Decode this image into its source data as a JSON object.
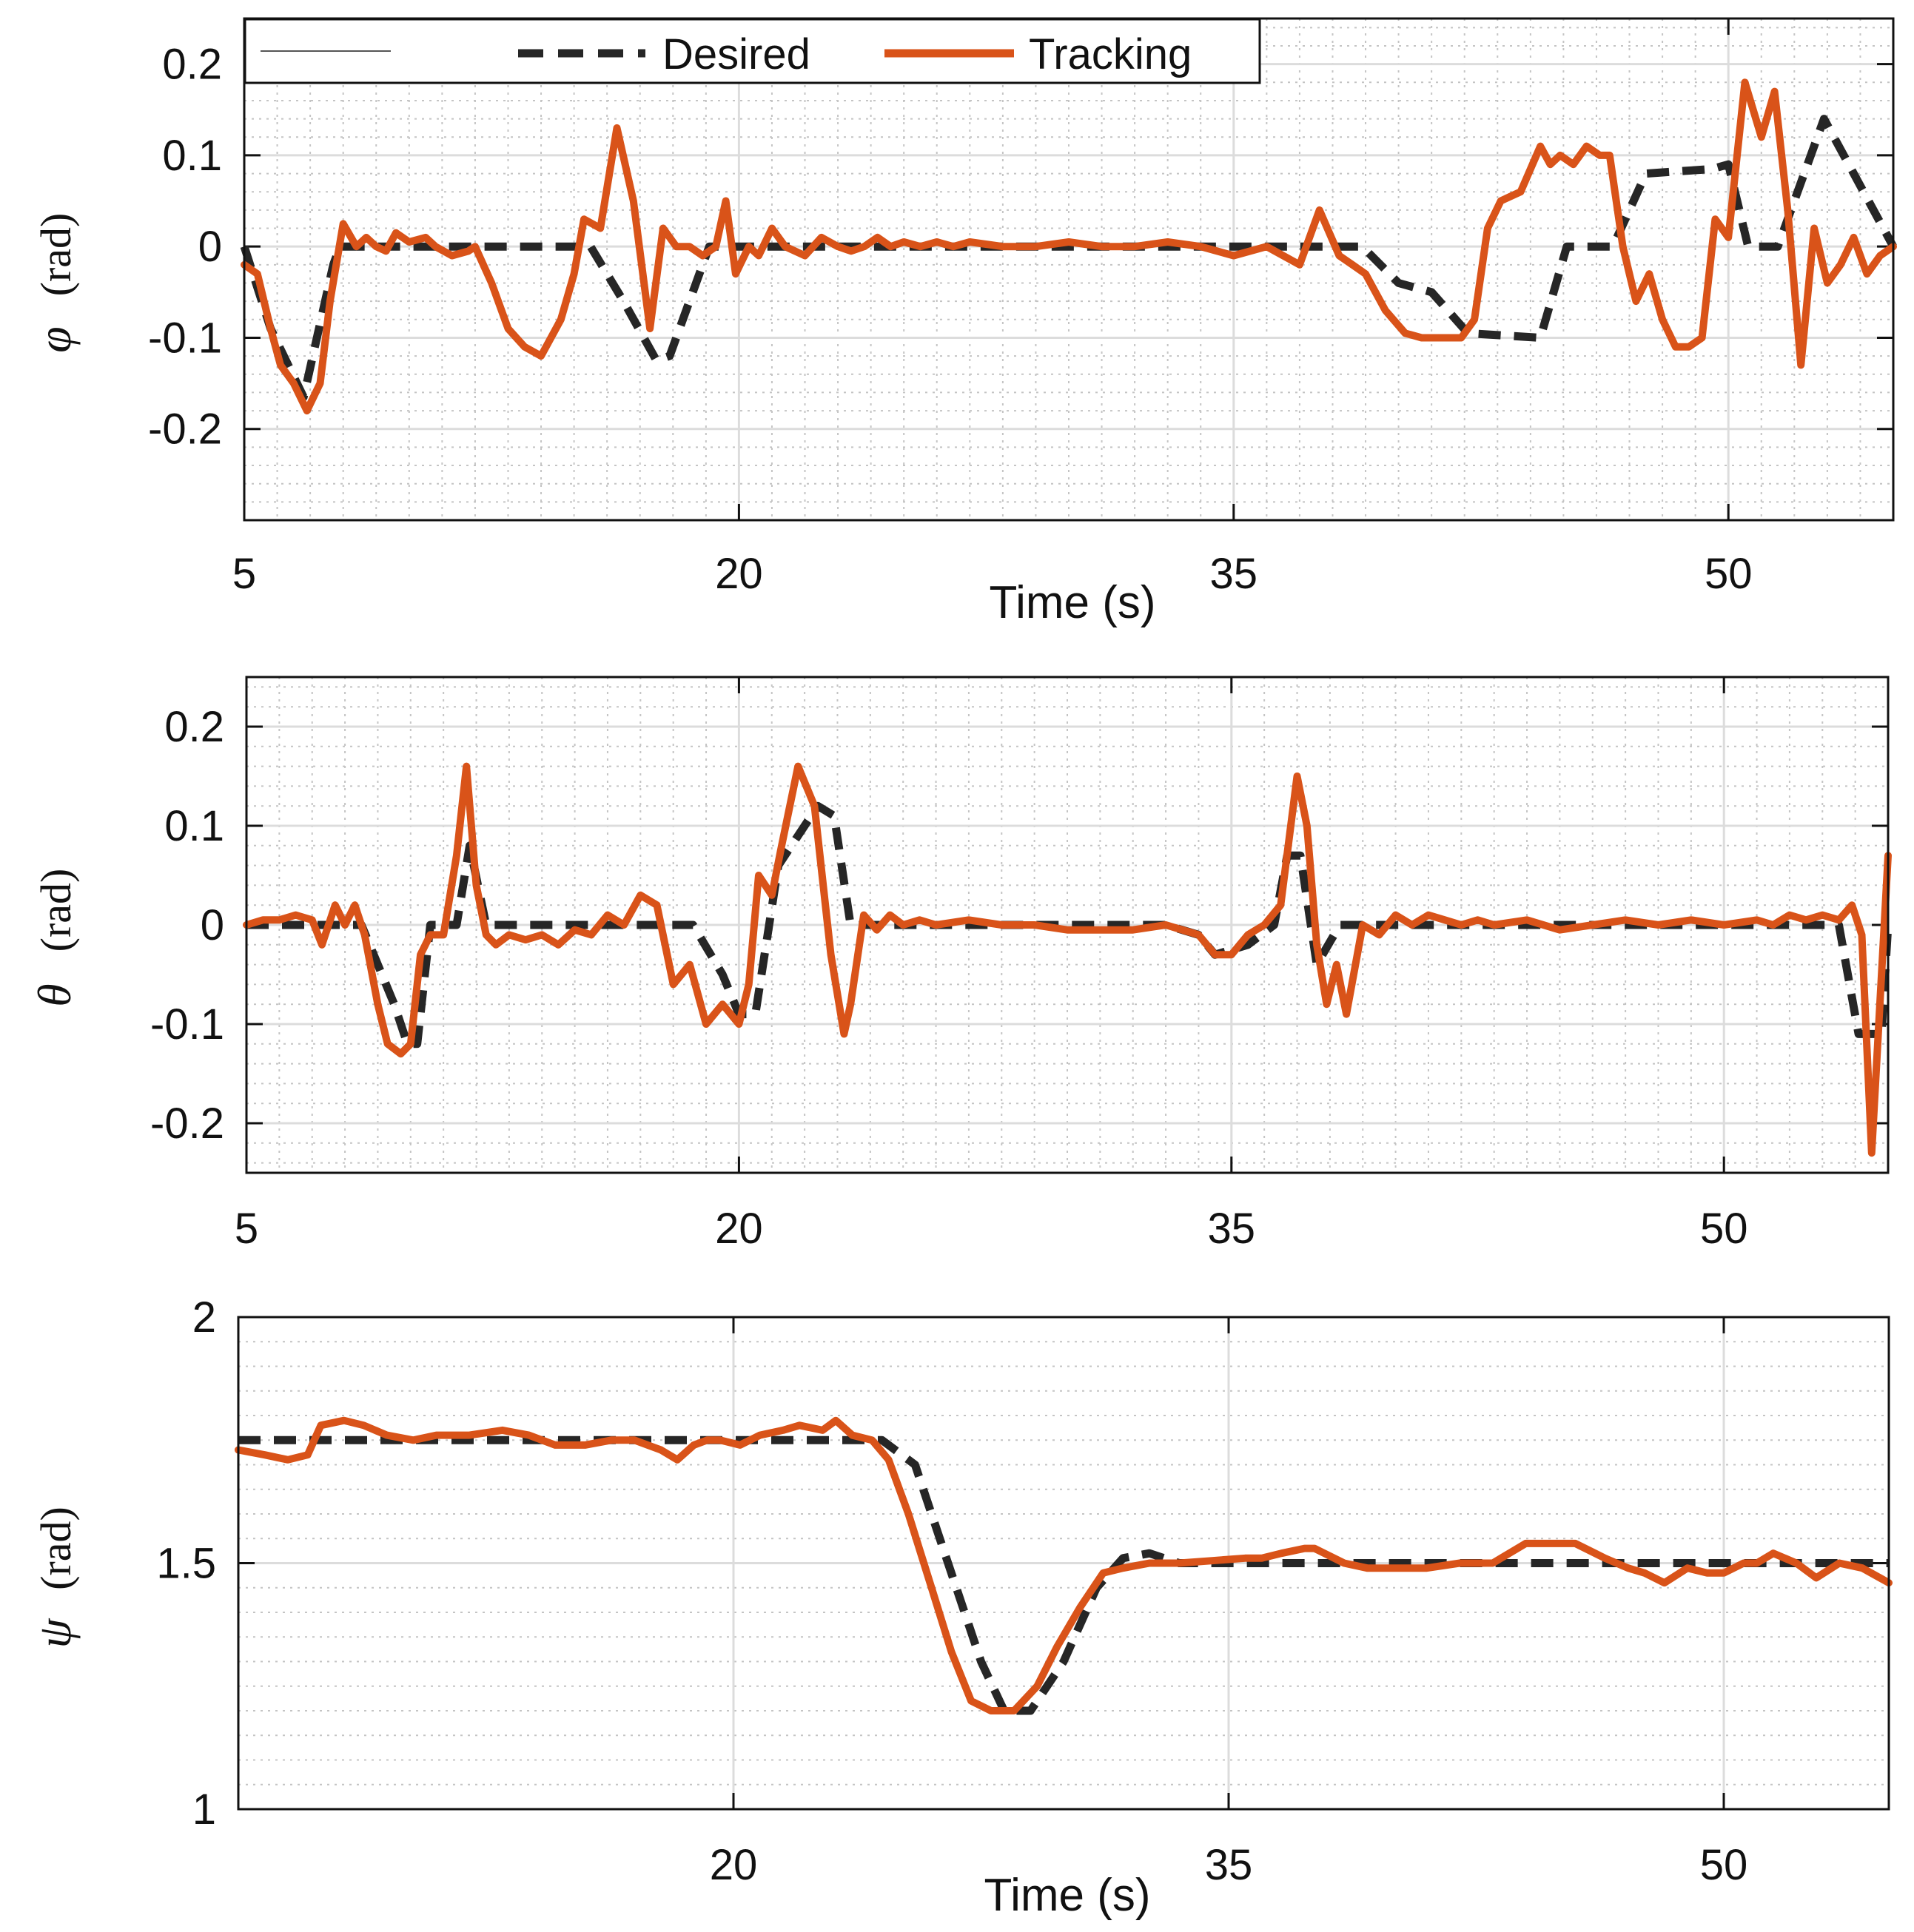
{
  "colors": {
    "desired": "#262626",
    "tracking": "#d95319",
    "grid_major": "#dcdcdc",
    "grid_minor": "#c4c4c4",
    "axes": "#111111"
  },
  "legend": {
    "blank_entry": "",
    "desired_label": "Desired",
    "tracking_label": "Tracking"
  },
  "chart_data": [
    {
      "type": "line",
      "title": "",
      "symbol": "φ",
      "ylabel_unit": "(rad)",
      "xlabel": "Time (s)",
      "xlim": [
        5,
        55
      ],
      "ylim": [
        -0.3,
        0.25
      ],
      "xticks": [
        5,
        20,
        35,
        50
      ],
      "xtick_labels": [
        "5",
        "20",
        "35",
        "50"
      ],
      "yticks": [
        0.2,
        0.1,
        0,
        -0.1,
        -0.2
      ],
      "ytick_labels": [
        "0.2",
        "0.1",
        "0",
        "-0.1",
        "-0.2"
      ],
      "grid": true,
      "legend": true,
      "series": [
        {
          "name": "Desired",
          "style": "dashed",
          "x": [
            5,
            5.8,
            6.8,
            7.7,
            7.9,
            8.5,
            15.5,
            16.5,
            17.5,
            17.9,
            18.6,
            19.1,
            19.5,
            33,
            38.9,
            40,
            41,
            42.1,
            44.3,
            45.1,
            46.5,
            47.5,
            49.5,
            50,
            50.6,
            51.5,
            52,
            52.9,
            55
          ],
          "y": [
            0,
            -0.09,
            -0.165,
            -0.02,
            0,
            0,
            0,
            -0.06,
            -0.125,
            -0.12,
            -0.05,
            0,
            0,
            0,
            0,
            -0.04,
            -0.05,
            -0.095,
            -0.1,
            0,
            0,
            0.08,
            0.085,
            0.09,
            0,
            0,
            0.05,
            0.14,
            0
          ]
        },
        {
          "name": "Tracking",
          "style": "solid",
          "x": [
            5,
            5.4,
            5.8,
            6.1,
            6.5,
            6.9,
            7.3,
            7.6,
            8.0,
            8.4,
            8.7,
            9.0,
            9.3,
            9.6,
            10,
            10.5,
            10.8,
            11.3,
            11.8,
            12.0,
            12.5,
            13,
            13.5,
            14,
            14.6,
            15.0,
            15.3,
            15.8,
            16.3,
            16.8,
            17.3,
            17.7,
            18.1,
            18.5,
            18.9,
            19.3,
            19.6,
            19.9,
            20.3,
            20.6,
            21.0,
            21.4,
            22.0,
            22.5,
            23.0,
            23.4,
            23.8,
            24.2,
            24.6,
            25.0,
            25.5,
            26,
            26.5,
            27,
            28,
            29,
            30,
            31,
            32,
            33,
            34,
            35,
            36,
            37,
            37.6,
            38.2,
            38.6,
            39.0,
            39.6,
            40.2,
            40.7,
            41.1,
            41.5,
            41.9,
            42.3,
            42.7,
            43.1,
            43.7,
            44.3,
            44.6,
            44.9,
            45.3,
            45.7,
            46.1,
            46.4,
            46.8,
            47.2,
            47.6,
            48.0,
            48.4,
            48.8,
            49.2,
            49.6,
            50.0,
            50.5,
            51.0,
            51.4,
            51.8,
            52.2,
            52.6,
            53.0,
            53.4,
            53.8,
            54.2,
            54.6,
            55
          ],
          "y": [
            -0.02,
            -0.03,
            -0.09,
            -0.13,
            -0.15,
            -0.18,
            -0.15,
            -0.06,
            0.025,
            0.0,
            0.01,
            0.0,
            -0.005,
            0.015,
            0.005,
            0.01,
            0.0,
            -0.01,
            -0.005,
            0.0,
            -0.04,
            -0.09,
            -0.11,
            -0.12,
            -0.08,
            -0.03,
            0.03,
            0.02,
            0.13,
            0.05,
            -0.09,
            0.02,
            0.0,
            0.0,
            -0.01,
            0.0,
            0.05,
            -0.03,
            0.0,
            -0.01,
            0.02,
            0.0,
            -0.01,
            0.01,
            0.0,
            -0.005,
            0.0,
            0.01,
            0.0,
            0.005,
            0.0,
            0.005,
            0.0,
            0.005,
            0.0,
            0.0,
            0.005,
            0.0,
            0.0,
            0.005,
            0.0,
            -0.01,
            0.0,
            -0.02,
            0.04,
            -0.01,
            -0.02,
            -0.03,
            -0.07,
            -0.095,
            -0.1,
            -0.1,
            -0.1,
            -0.1,
            -0.08,
            0.02,
            0.05,
            0.06,
            0.11,
            0.09,
            0.1,
            0.09,
            0.11,
            0.1,
            0.1,
            0.0,
            -0.06,
            -0.03,
            -0.08,
            -0.11,
            -0.11,
            -0.1,
            0.03,
            0.01,
            0.18,
            0.12,
            0.17,
            0.04,
            -0.13,
            0.02,
            -0.04,
            -0.02,
            0.01,
            -0.03,
            -0.01,
            0.0
          ]
        }
      ]
    },
    {
      "type": "line",
      "title": "",
      "symbol": "θ",
      "ylabel_unit": "(rad)",
      "xlabel": "",
      "xlim": [
        5,
        55
      ],
      "ylim": [
        -0.25,
        0.25
      ],
      "xticks": [
        5,
        20,
        35,
        50
      ],
      "xtick_labels": [
        "5",
        "20",
        "35",
        "50"
      ],
      "yticks": [
        0.2,
        0.1,
        0,
        -0.1,
        -0.2
      ],
      "ytick_labels": [
        "0.2",
        "0.1",
        "0",
        "-0.1",
        "-0.2"
      ],
      "grid": true,
      "legend": false,
      "series": [
        {
          "name": "Desired",
          "style": "dashed",
          "x": [
            5,
            8.5,
            9.5,
            9.9,
            10.2,
            10.6,
            11.4,
            11.8,
            12.3,
            18.6,
            19.5,
            20,
            20.5,
            21.2,
            22.4,
            22.9,
            23.4,
            24.3,
            29.5,
            33,
            34,
            34.5,
            35.5,
            36.3,
            36.7,
            37.1,
            37.6,
            38.3,
            53.5,
            54.1,
            54.8,
            55
          ],
          "y": [
            0,
            0,
            -0.08,
            -0.12,
            -0.12,
            0,
            0,
            0.08,
            0,
            0,
            -0.05,
            -0.09,
            -0.09,
            0.06,
            0.12,
            0.11,
            0.0,
            0,
            0,
            0,
            -0.01,
            -0.03,
            -0.02,
            0.0,
            0.07,
            0.07,
            -0.04,
            0,
            0,
            -0.11,
            -0.11,
            0
          ]
        },
        {
          "name": "Tracking",
          "style": "solid",
          "x": [
            5,
            5.5,
            6,
            6.5,
            7,
            7.3,
            7.7,
            8.0,
            8.3,
            8.6,
            9.0,
            9.3,
            9.7,
            10.0,
            10.3,
            10.6,
            11.0,
            11.4,
            11.7,
            12.0,
            12.3,
            12.6,
            13.0,
            13.5,
            14,
            14.5,
            15,
            15.5,
            16,
            16.5,
            17,
            17.5,
            18,
            18.5,
            19,
            19.5,
            20,
            20.3,
            20.6,
            21.0,
            21.3,
            21.8,
            22.3,
            22.8,
            23.2,
            23.4,
            23.8,
            24.2,
            24.6,
            25,
            25.5,
            26,
            27,
            28,
            29,
            30,
            31,
            32,
            33,
            33.5,
            34,
            34.5,
            35,
            35.5,
            36,
            36.5,
            37,
            37.3,
            37.6,
            37.9,
            38.2,
            38.5,
            39,
            39.5,
            40,
            40.5,
            41,
            41.5,
            42,
            42.5,
            43,
            44,
            45,
            46,
            47,
            48,
            49,
            50,
            51,
            51.5,
            52,
            52.5,
            53,
            53.5,
            53.9,
            54.2,
            54.5,
            55
          ],
          "y": [
            0,
            0.005,
            0.005,
            0.01,
            0.005,
            -0.02,
            0.02,
            0.0,
            0.02,
            -0.01,
            -0.08,
            -0.12,
            -0.13,
            -0.12,
            -0.03,
            -0.01,
            -0.01,
            0.07,
            0.16,
            0.04,
            -0.01,
            -0.02,
            -0.01,
            -0.015,
            -0.01,
            -0.02,
            -0.005,
            -0.01,
            0.01,
            0.0,
            0.03,
            0.02,
            -0.06,
            -0.04,
            -0.1,
            -0.08,
            -0.1,
            -0.06,
            0.05,
            0.03,
            0.08,
            0.16,
            0.12,
            -0.03,
            -0.11,
            -0.08,
            0.01,
            -0.005,
            0.01,
            0.0,
            0.005,
            0.0,
            0.005,
            0.0,
            0.0,
            -0.005,
            -0.005,
            -0.005,
            0.0,
            -0.005,
            -0.01,
            -0.03,
            -0.03,
            -0.01,
            0.0,
            0.02,
            0.15,
            0.1,
            -0.02,
            -0.08,
            -0.04,
            -0.09,
            0.0,
            -0.01,
            0.01,
            0.0,
            0.01,
            0.005,
            0.0,
            0.005,
            0.0,
            0.005,
            -0.005,
            0.0,
            0.005,
            0.0,
            0.005,
            0.0,
            0.005,
            0.0,
            0.01,
            0.005,
            0.01,
            0.005,
            0.02,
            -0.01,
            -0.23,
            0.07
          ]
        }
      ]
    },
    {
      "type": "line",
      "title": "",
      "symbol": "ψ",
      "ylabel_unit": "(rad)",
      "xlabel": "Time (s)",
      "xlim": [
        5,
        55
      ],
      "ylim": [
        1,
        2
      ],
      "xticks": [
        20,
        35,
        50
      ],
      "xtick_labels": [
        "20",
        "35",
        "50"
      ],
      "yticks": [
        2,
        1.5,
        1
      ],
      "ytick_labels": [
        "2",
        "1.5",
        "1"
      ],
      "grid": true,
      "legend": false,
      "series": [
        {
          "name": "Desired",
          "style": "dashed",
          "x": [
            5,
            24.5,
            25.5,
            26.5,
            27.5,
            28.2,
            29.0,
            30.0,
            31.0,
            31.8,
            32.6,
            33.5,
            55
          ],
          "y": [
            1.75,
            1.75,
            1.7,
            1.5,
            1.3,
            1.2,
            1.2,
            1.3,
            1.45,
            1.51,
            1.52,
            1.5,
            1.5
          ]
        },
        {
          "name": "Tracking",
          "style": "solid",
          "x": [
            5,
            5.8,
            6.5,
            7.1,
            7.5,
            8.2,
            8.8,
            9.5,
            10.3,
            11.0,
            12.0,
            13,
            13.8,
            14.6,
            15.5,
            16.3,
            17.0,
            17.8,
            18.3,
            18.8,
            19.2,
            19.6,
            20.2,
            20.8,
            21.5,
            22.0,
            22.7,
            23.1,
            23.6,
            24.2,
            24.7,
            25.3,
            26.0,
            26.6,
            27.2,
            27.8,
            28.5,
            29.2,
            29.8,
            30.5,
            31.2,
            31.8,
            32.6,
            33.5,
            34.5,
            35.5,
            36.0,
            36.6,
            37.3,
            37.6,
            37.9,
            38.5,
            39.2,
            40.0,
            41,
            42,
            43,
            44,
            44.8,
            45.5,
            46.4,
            47.1,
            47.6,
            48.2,
            48.9,
            49.5,
            50.0,
            50.6,
            51.0,
            51.5,
            52.2,
            52.8,
            53.5,
            54.2,
            55
          ],
          "y": [
            1.73,
            1.72,
            1.71,
            1.72,
            1.78,
            1.79,
            1.78,
            1.76,
            1.75,
            1.76,
            1.76,
            1.77,
            1.76,
            1.74,
            1.74,
            1.75,
            1.75,
            1.73,
            1.71,
            1.74,
            1.75,
            1.75,
            1.74,
            1.76,
            1.77,
            1.78,
            1.77,
            1.79,
            1.76,
            1.75,
            1.71,
            1.6,
            1.45,
            1.32,
            1.22,
            1.2,
            1.2,
            1.25,
            1.33,
            1.41,
            1.48,
            1.49,
            1.5,
            1.5,
            1.505,
            1.51,
            1.51,
            1.52,
            1.53,
            1.53,
            1.52,
            1.5,
            1.49,
            1.49,
            1.49,
            1.5,
            1.5,
            1.54,
            1.54,
            1.54,
            1.51,
            1.49,
            1.48,
            1.46,
            1.49,
            1.48,
            1.48,
            1.5,
            1.5,
            1.52,
            1.5,
            1.47,
            1.5,
            1.49,
            1.46
          ]
        }
      ]
    }
  ]
}
